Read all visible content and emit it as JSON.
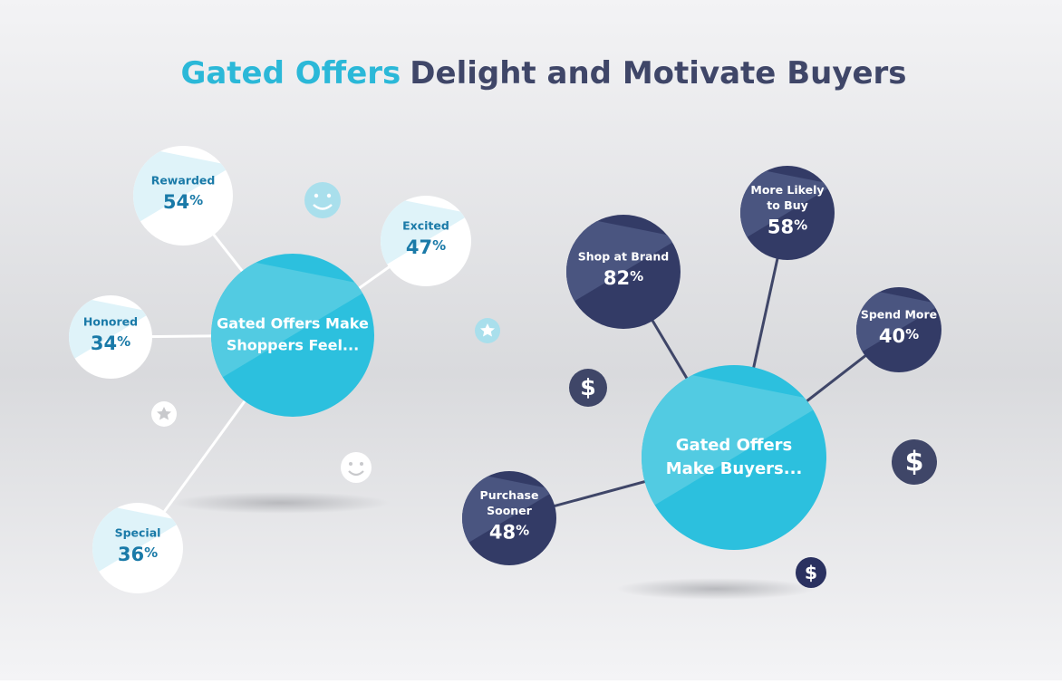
{
  "title": {
    "highlight": "Gated Offers",
    "rest": "Delight and Motivate Buyers"
  },
  "dollar_icon": "$",
  "clusters": [
    {
      "center": {
        "lines": [
          "Gated Offers Make",
          "Shoppers Feel..."
        ]
      },
      "nodes": [
        {
          "lines": [
            "Rewarded"
          ],
          "value": 54,
          "unit": "%"
        },
        {
          "lines": [
            "Excited"
          ],
          "value": 47,
          "unit": "%"
        },
        {
          "lines": [
            "Honored"
          ],
          "value": 34,
          "unit": "%"
        },
        {
          "lines": [
            "Special"
          ],
          "value": 36,
          "unit": "%"
        }
      ]
    },
    {
      "center": {
        "lines": [
          "Gated Offers",
          "Make Buyers..."
        ]
      },
      "nodes": [
        {
          "lines": [
            "Shop at Brand"
          ],
          "value": 82,
          "unit": "%"
        },
        {
          "lines": [
            "More Likely",
            "to Buy"
          ],
          "value": 58,
          "unit": "%"
        },
        {
          "lines": [
            "Spend More"
          ],
          "value": 40,
          "unit": "%"
        },
        {
          "lines": [
            "Purchase",
            "Sooner"
          ],
          "value": 48,
          "unit": "%"
        }
      ]
    }
  ]
}
